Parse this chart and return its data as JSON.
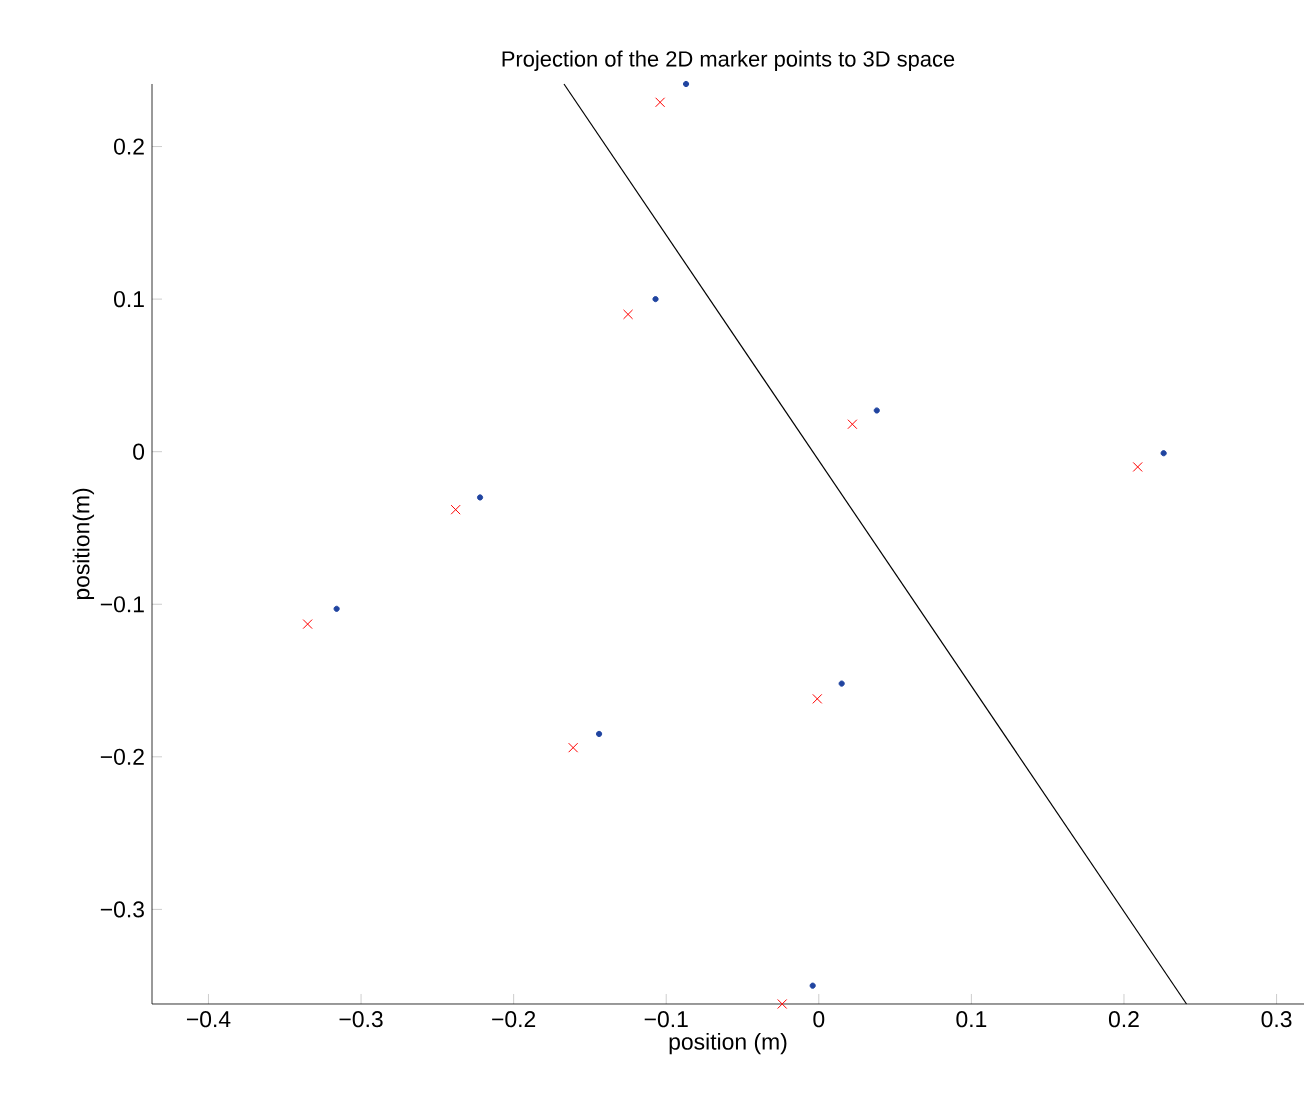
{
  "chart_data": {
    "type": "scatter",
    "title": "Projection of the 2D marker points to 3D space",
    "xlabel": "position (m)",
    "ylabel": "position(m)",
    "xlim": [
      -0.437,
      0.318
    ],
    "ylim": [
      -0.362,
      0.241
    ],
    "xticks": [
      {
        "value": -0.4,
        "label": "−0.4"
      },
      {
        "value": -0.3,
        "label": "−0.3"
      },
      {
        "value": -0.2,
        "label": "−0.2"
      },
      {
        "value": -0.1,
        "label": "−0.1"
      },
      0,
      0.1,
      0.2,
      0.3
    ],
    "yticks": [
      {
        "value": -0.3,
        "label": "−0.3"
      },
      {
        "value": -0.2,
        "label": "−0.2"
      },
      {
        "value": -0.1,
        "label": "−0.1"
      },
      0,
      0.1,
      0.2
    ],
    "grid": false,
    "series": [
      {
        "marker": "circle",
        "color": "#2044a0",
        "x": [
          -0.087,
          -0.107,
          0.038,
          0.226,
          -0.222,
          -0.316,
          -0.144,
          0.015,
          -0.004
        ],
        "values": [
          0.241,
          0.1,
          0.027,
          -0.001,
          -0.03,
          -0.103,
          -0.185,
          -0.152,
          -0.35
        ]
      },
      {
        "marker": "cross",
        "color": "#ff0000",
        "x": [
          -0.104,
          -0.125,
          0.022,
          0.209,
          -0.238,
          -0.335,
          -0.161,
          -0.001,
          -0.024
        ],
        "values": [
          0.229,
          0.09,
          0.018,
          -0.01,
          -0.038,
          -0.113,
          -0.194,
          -0.162,
          -0.362
        ]
      },
      {
        "type": "line",
        "marker": "none",
        "line_style": "solid",
        "color": "#000000",
        "x": [
          -0.167,
          0.241
        ],
        "values": [
          0.241,
          -0.362
        ]
      }
    ]
  }
}
